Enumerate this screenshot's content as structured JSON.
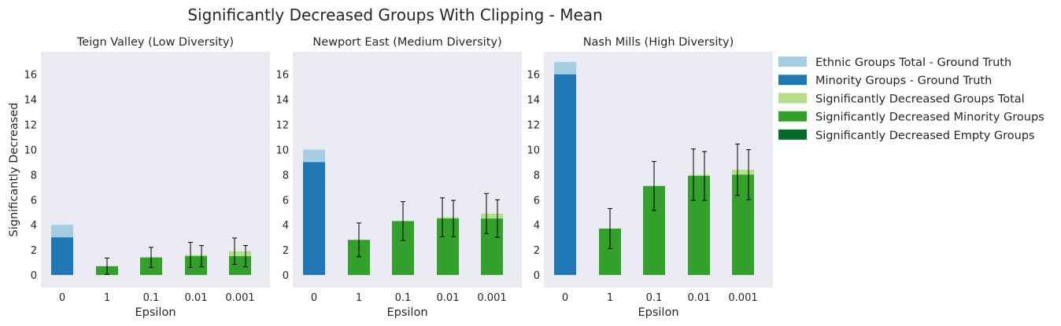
{
  "title": "Significantly Decreased Groups With Clipping - Mean",
  "colors": {
    "plot_background": "#eaeaf2",
    "ethnic_total_truth": "#a6cee3",
    "minority_truth": "#1f78b4",
    "decreased_total": "#b2df8a",
    "decreased_minority": "#33a02c",
    "decreased_empty": "#006d2c",
    "error_bar": "#000000"
  },
  "legend": {
    "placement": "outside-right",
    "entries": [
      {
        "label": "Ethnic Groups Total - Ground Truth",
        "color": "#a6cee3"
      },
      {
        "label": "Minority Groups - Ground Truth",
        "color": "#1f78b4"
      },
      {
        "label": "Significantly Decreased Groups Total",
        "color": "#b2df8a"
      },
      {
        "label": "Significantly Decreased Minority Groups",
        "color": "#33a02c"
      },
      {
        "label": "Significantly Decreased Empty Groups",
        "color": "#006d2c"
      }
    ]
  },
  "chart_data": [
    {
      "type": "bar",
      "title": "Teign Valley (Low Diversity)",
      "xlabel": "Epsilon",
      "ylabel": "Significantly Decreased",
      "categories": [
        "0",
        "1",
        "0.1",
        "0.01",
        "0.001"
      ],
      "ylim": [
        -1,
        17.8
      ],
      "yticks": [
        0,
        2,
        4,
        6,
        8,
        10,
        12,
        14,
        16
      ],
      "grid": false,
      "ground_truth": {
        "ethnic_total": 4,
        "minority": 3
      },
      "decreased_total": {
        "values": [
          0.7,
          1.4,
          1.6,
          1.9
        ],
        "errors": [
          0.65,
          0.8,
          1.0,
          1.05
        ]
      },
      "decreased_minority": {
        "values": [
          0.7,
          1.4,
          1.5,
          1.5
        ],
        "errors": [
          0.65,
          0.8,
          0.85,
          0.85
        ]
      },
      "decreased_empty": {
        "values": [
          0,
          0,
          0,
          0
        ]
      }
    },
    {
      "type": "bar",
      "title": "Newport East (Medium Diversity)",
      "xlabel": "Epsilon",
      "ylabel": "",
      "categories": [
        "0",
        "1",
        "0.1",
        "0.01",
        "0.001"
      ],
      "ylim": [
        -1,
        17.8
      ],
      "yticks": [
        0,
        2,
        4,
        6,
        8,
        10,
        12,
        14,
        16
      ],
      "grid": false,
      "ground_truth": {
        "ethnic_total": 10,
        "minority": 9
      },
      "decreased_total": {
        "values": [
          2.8,
          4.3,
          4.6,
          4.9
        ],
        "errors": [
          1.35,
          1.55,
          1.55,
          1.6
        ]
      },
      "decreased_minority": {
        "values": [
          2.8,
          4.3,
          4.5,
          4.5
        ],
        "errors": [
          1.35,
          1.55,
          1.45,
          1.5
        ]
      },
      "decreased_empty": {
        "values": [
          0,
          0,
          0,
          0
        ]
      }
    },
    {
      "type": "bar",
      "title": "Nash Mills (High Diversity)",
      "xlabel": "Epsilon",
      "ylabel": "",
      "categories": [
        "0",
        "1",
        "0.1",
        "0.01",
        "0.001"
      ],
      "ylim": [
        -1,
        17.8
      ],
      "yticks": [
        0,
        2,
        4,
        6,
        8,
        10,
        12,
        14,
        16
      ],
      "grid": false,
      "ground_truth": {
        "ethnic_total": 17,
        "minority": 16
      },
      "decreased_total": {
        "values": [
          3.7,
          7.1,
          8.0,
          8.4
        ],
        "errors": [
          1.6,
          1.95,
          2.05,
          2.05
        ]
      },
      "decreased_minority": {
        "values": [
          3.7,
          7.1,
          7.9,
          8.0
        ],
        "errors": [
          1.6,
          1.95,
          1.95,
          2.0
        ]
      },
      "decreased_empty": {
        "values": [
          0,
          0,
          0,
          0
        ]
      }
    }
  ]
}
